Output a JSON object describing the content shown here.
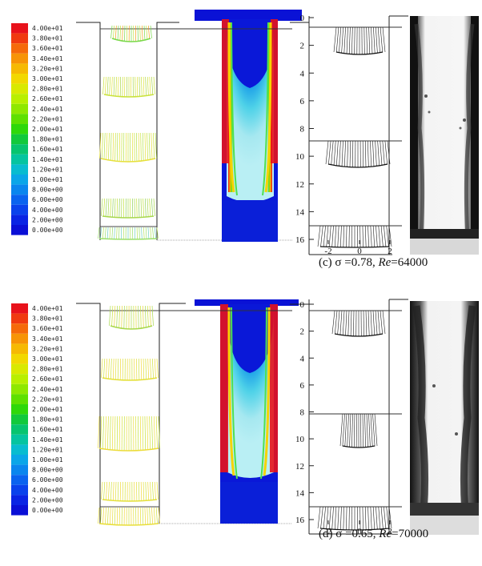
{
  "legend": {
    "labels": [
      "4.00e+01",
      "3.80e+01",
      "3.60e+01",
      "3.40e+01",
      "3.20e+01",
      "3.00e+01",
      "2.80e+01",
      "2.60e+01",
      "2.40e+01",
      "2.20e+01",
      "2.00e+01",
      "1.80e+01",
      "1.60e+01",
      "1.40e+01",
      "1.20e+01",
      "1.00e+01",
      "8.00e+00",
      "6.00e+00",
      "4.00e+00",
      "2.00e+00",
      "0.00e+00"
    ],
    "colors": [
      "#e8121b",
      "#f03a10",
      "#f56a0a",
      "#f79407",
      "#f6b903",
      "#f2d800",
      "#d9e900",
      "#b9ef00",
      "#8fe800",
      "#5fe000",
      "#2fd80a",
      "#12c93c",
      "#07c46f",
      "#05c4a0",
      "#08bcd0",
      "#0aa6e8",
      "#0a86ee",
      "#0a63ef",
      "#0a42ec",
      "#0a24e4",
      "#0a0fd6"
    ]
  },
  "panels": [
    {
      "id": "c",
      "caption": {
        "label": "(c) σ =0.78, ",
        "re_symbol": "Re",
        "re_value": "=64000"
      },
      "axis": {
        "y_ticks": [
          "0",
          "2",
          "4",
          "6",
          "8",
          "10",
          "12",
          "14",
          "16"
        ],
        "x_ticks": [
          "-2",
          "0",
          "2"
        ]
      }
    },
    {
      "id": "d",
      "caption": {
        "label": "(d) σ =0.65, ",
        "re_symbol": "Re",
        "re_value": "=70000"
      },
      "axis": {
        "y_ticks": [
          "0",
          "2",
          "4",
          "6",
          "8",
          "10",
          "12",
          "14",
          "16"
        ],
        "x_ticks": [
          "-2",
          "0",
          "2"
        ]
      }
    }
  ]
}
